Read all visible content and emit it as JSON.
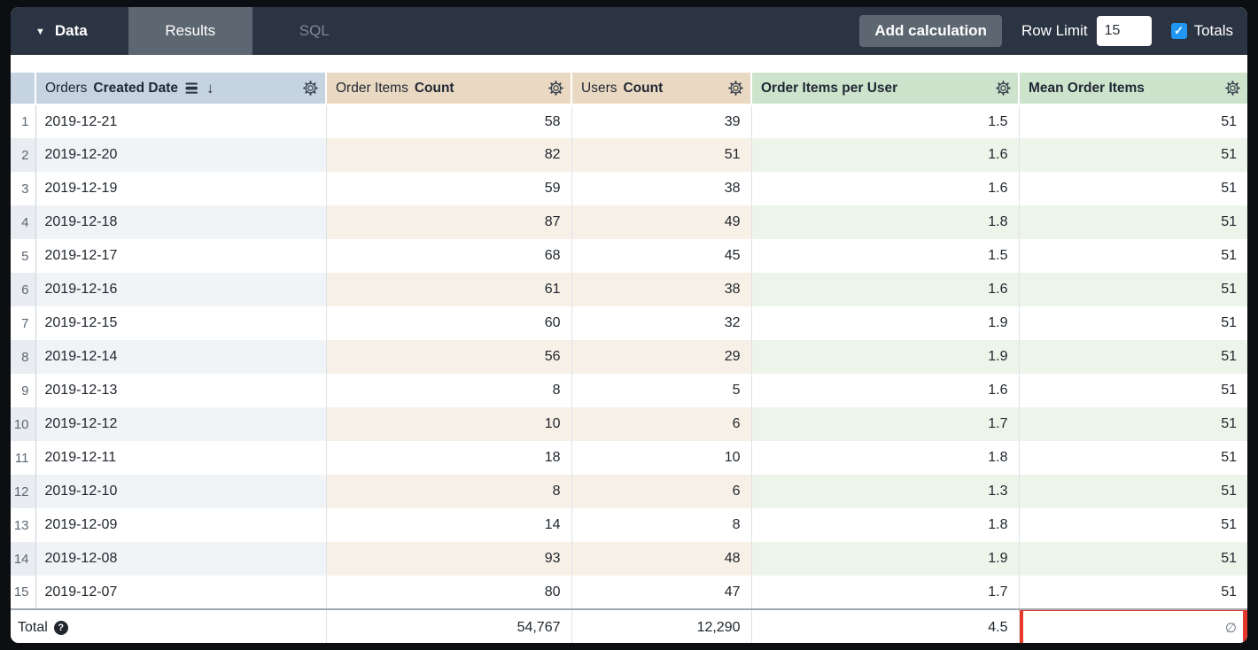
{
  "toolbar": {
    "data_label": "Data",
    "tabs": {
      "results": "Results",
      "sql": "SQL"
    },
    "add_calculation_label": "Add calculation",
    "row_limit_label": "Row Limit",
    "row_limit_value": "15",
    "totals_label": "Totals",
    "totals_checked": true,
    "checkbox_color": "#2196f3",
    "check_glyph": "✓",
    "caret_glyph": "▼"
  },
  "table": {
    "columns": [
      {
        "view": "Orders",
        "field": "Created Date",
        "type": "dimension",
        "sorted": "descending",
        "header_color": "#c6d3e0"
      },
      {
        "view": "Order Items",
        "field": "Count",
        "type": "measure",
        "header_color": "#ead9c2"
      },
      {
        "view": "Users",
        "field": "Count",
        "type": "measure",
        "header_color": "#ead9c2"
      },
      {
        "view": "",
        "field": "Order Items per User",
        "type": "table_calculation",
        "header_color": "#cee3cc"
      },
      {
        "view": "",
        "field": "Mean Order Items",
        "type": "table_calculation",
        "header_color": "#cee3cc"
      }
    ],
    "sort_arrow_glyph": "↓",
    "rows": [
      {
        "num": "1",
        "date": "2019-12-21",
        "order_items_count": "58",
        "users_count": "39",
        "order_items_per_user": "1.5",
        "mean_order_items": "51"
      },
      {
        "num": "2",
        "date": "2019-12-20",
        "order_items_count": "82",
        "users_count": "51",
        "order_items_per_user": "1.6",
        "mean_order_items": "51"
      },
      {
        "num": "3",
        "date": "2019-12-19",
        "order_items_count": "59",
        "users_count": "38",
        "order_items_per_user": "1.6",
        "mean_order_items": "51"
      },
      {
        "num": "4",
        "date": "2019-12-18",
        "order_items_count": "87",
        "users_count": "49",
        "order_items_per_user": "1.8",
        "mean_order_items": "51"
      },
      {
        "num": "5",
        "date": "2019-12-17",
        "order_items_count": "68",
        "users_count": "45",
        "order_items_per_user": "1.5",
        "mean_order_items": "51"
      },
      {
        "num": "6",
        "date": "2019-12-16",
        "order_items_count": "61",
        "users_count": "38",
        "order_items_per_user": "1.6",
        "mean_order_items": "51"
      },
      {
        "num": "7",
        "date": "2019-12-15",
        "order_items_count": "60",
        "users_count": "32",
        "order_items_per_user": "1.9",
        "mean_order_items": "51"
      },
      {
        "num": "8",
        "date": "2019-12-14",
        "order_items_count": "56",
        "users_count": "29",
        "order_items_per_user": "1.9",
        "mean_order_items": "51"
      },
      {
        "num": "9",
        "date": "2019-12-13",
        "order_items_count": "8",
        "users_count": "5",
        "order_items_per_user": "1.6",
        "mean_order_items": "51"
      },
      {
        "num": "10",
        "date": "2019-12-12",
        "order_items_count": "10",
        "users_count": "6",
        "order_items_per_user": "1.7",
        "mean_order_items": "51"
      },
      {
        "num": "11",
        "date": "2019-12-11",
        "order_items_count": "18",
        "users_count": "10",
        "order_items_per_user": "1.8",
        "mean_order_items": "51"
      },
      {
        "num": "12",
        "date": "2019-12-10",
        "order_items_count": "8",
        "users_count": "6",
        "order_items_per_user": "1.3",
        "mean_order_items": "51"
      },
      {
        "num": "13",
        "date": "2019-12-09",
        "order_items_count": "14",
        "users_count": "8",
        "order_items_per_user": "1.8",
        "mean_order_items": "51"
      },
      {
        "num": "14",
        "date": "2019-12-08",
        "order_items_count": "93",
        "users_count": "48",
        "order_items_per_user": "1.9",
        "mean_order_items": "51"
      },
      {
        "num": "15",
        "date": "2019-12-07",
        "order_items_count": "80",
        "users_count": "47",
        "order_items_per_user": "1.7",
        "mean_order_items": "51"
      }
    ],
    "total": {
      "label": "Total",
      "order_items_count": "54,767",
      "users_count": "12,290",
      "order_items_per_user": "4.5",
      "mean_order_items": "∅"
    },
    "highlight": {
      "target": "total-mean-order-items-cell",
      "color": "#e5392c"
    }
  }
}
